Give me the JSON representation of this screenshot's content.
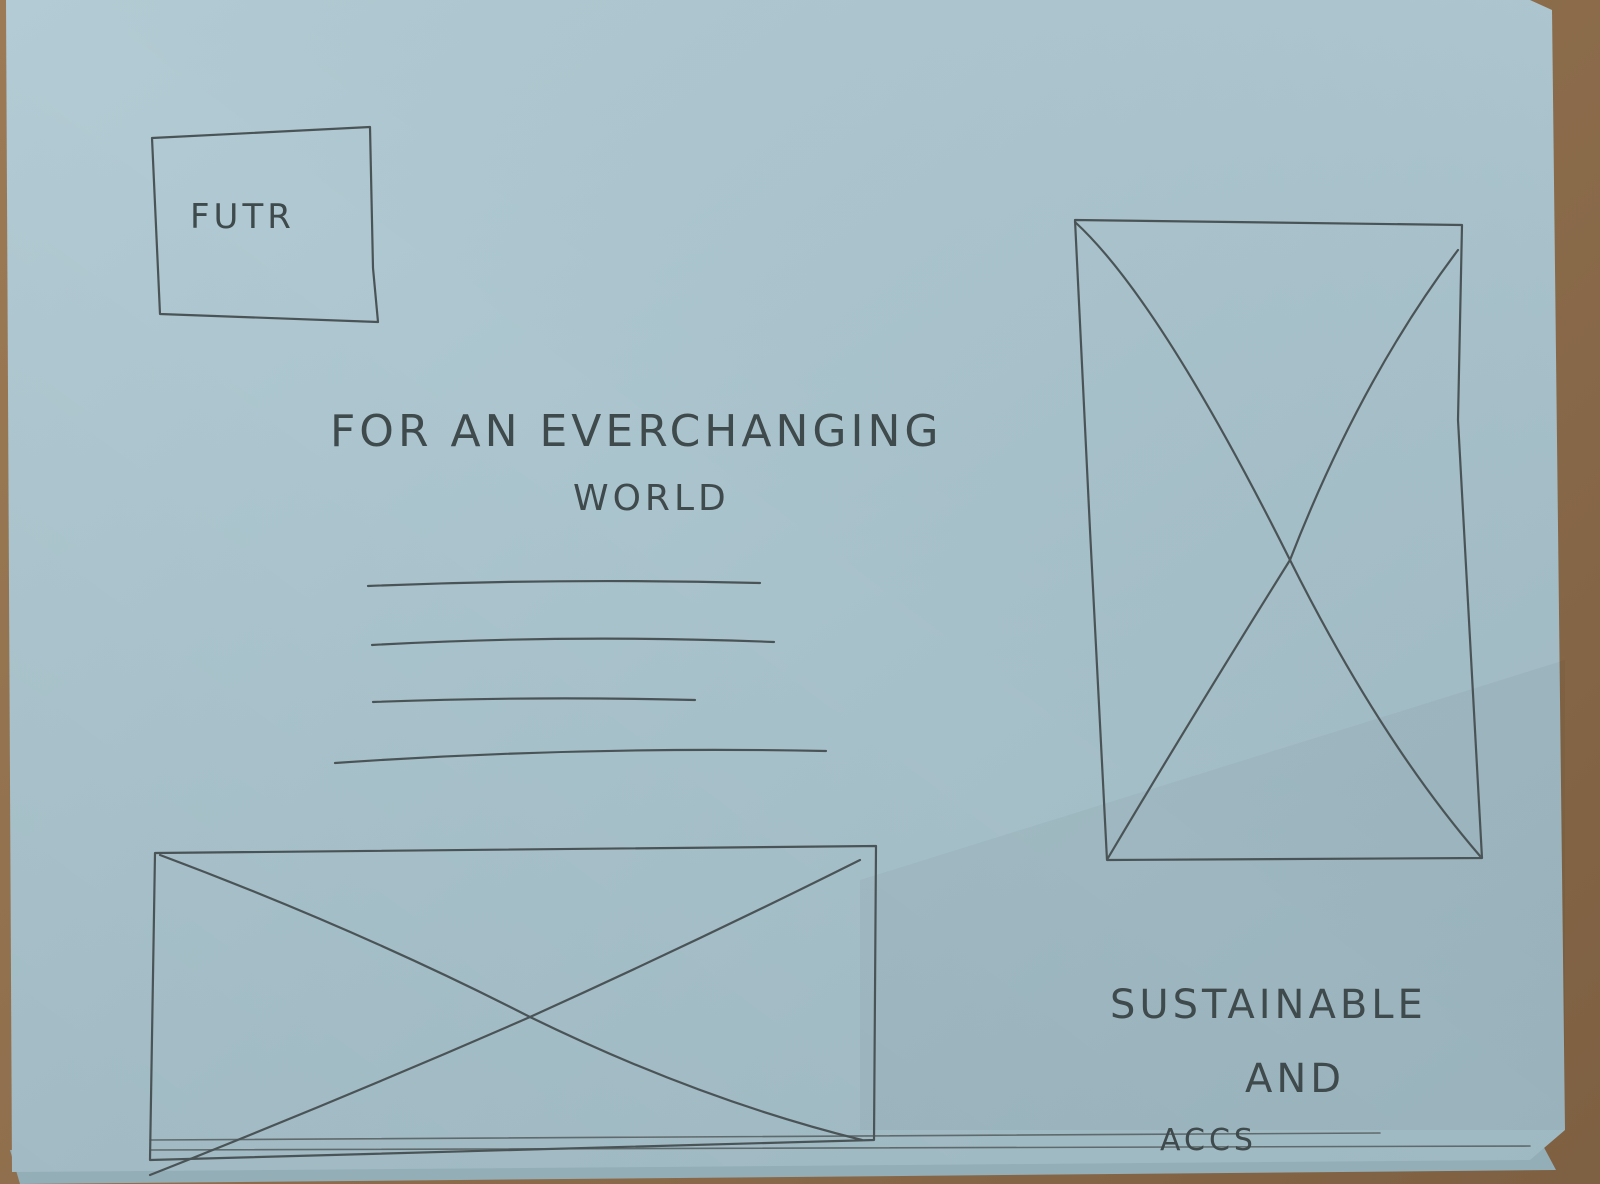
{
  "logo_box": {
    "label": "FUTR"
  },
  "headline": {
    "line1": "FOR AN EVERCHANGING",
    "line2": "WORLD"
  },
  "tagline": {
    "line1": "SUSTAINABLE",
    "line2": "AND",
    "line3": "ACCS"
  },
  "colors": {
    "paper": "#a9c3cd",
    "pencil": "#4a5456",
    "background": "#8a6a4a"
  },
  "icons": {
    "image_placeholder": "crossed-box-icon"
  }
}
